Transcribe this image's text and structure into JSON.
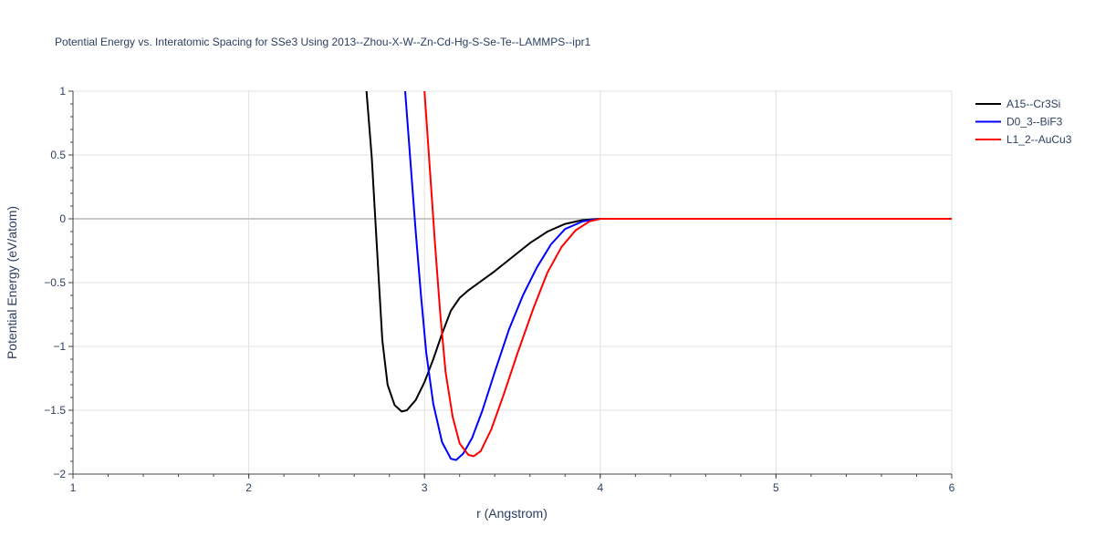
{
  "chart_data": {
    "type": "line",
    "title": "Potential Energy vs. Interatomic Spacing for SSe3 Using 2013--Zhou-X-W--Zn-Cd-Hg-S-Se-Te--LAMMPS--ipr1",
    "xlabel": "r (Angstrom)",
    "ylabel": "Potential Energy (eV/atom)",
    "xlim": [
      1,
      6
    ],
    "ylim": [
      -2,
      1
    ],
    "x_ticks": [
      1,
      2,
      3,
      4,
      5,
      6
    ],
    "x_tick_labels": [
      "1",
      "2",
      "3",
      "4",
      "5",
      "6"
    ],
    "y_ticks": [
      -2,
      -1.5,
      -1,
      -0.5,
      0,
      0.5,
      1
    ],
    "y_tick_labels": [
      "−2",
      "−1.5",
      "−1",
      "−0.5",
      "0",
      "0.5",
      "1"
    ],
    "grid": true,
    "legend_position": "top-right",
    "series": [
      {
        "name": "A15--Cr3Si",
        "color": "#000000",
        "points": [
          [
            2.67,
            1.0
          ],
          [
            2.7,
            0.48
          ],
          [
            2.72,
            0.0
          ],
          [
            2.74,
            -0.48
          ],
          [
            2.76,
            -0.95
          ],
          [
            2.79,
            -1.3
          ],
          [
            2.83,
            -1.46
          ],
          [
            2.87,
            -1.51
          ],
          [
            2.9,
            -1.5
          ],
          [
            2.95,
            -1.42
          ],
          [
            3.0,
            -1.28
          ],
          [
            3.05,
            -1.1
          ],
          [
            3.1,
            -0.9
          ],
          [
            3.15,
            -0.72
          ],
          [
            3.2,
            -0.62
          ],
          [
            3.25,
            -0.56
          ],
          [
            3.3,
            -0.51
          ],
          [
            3.4,
            -0.41
          ],
          [
            3.5,
            -0.3
          ],
          [
            3.6,
            -0.19
          ],
          [
            3.7,
            -0.1
          ],
          [
            3.8,
            -0.04
          ],
          [
            3.9,
            -0.01
          ],
          [
            4.0,
            0.0
          ],
          [
            4.2,
            0.0
          ],
          [
            5.0,
            0.0
          ],
          [
            6.0,
            0.0
          ]
        ]
      },
      {
        "name": "D0_3--BiF3",
        "color": "#0000ff",
        "points": [
          [
            2.89,
            1.0
          ],
          [
            2.92,
            0.45
          ],
          [
            2.95,
            -0.1
          ],
          [
            2.98,
            -0.6
          ],
          [
            3.01,
            -1.05
          ],
          [
            3.05,
            -1.45
          ],
          [
            3.1,
            -1.75
          ],
          [
            3.15,
            -1.88
          ],
          [
            3.18,
            -1.89
          ],
          [
            3.22,
            -1.84
          ],
          [
            3.27,
            -1.72
          ],
          [
            3.33,
            -1.5
          ],
          [
            3.4,
            -1.2
          ],
          [
            3.48,
            -0.87
          ],
          [
            3.56,
            -0.6
          ],
          [
            3.64,
            -0.38
          ],
          [
            3.72,
            -0.2
          ],
          [
            3.8,
            -0.08
          ],
          [
            3.9,
            -0.02
          ],
          [
            4.0,
            0.0
          ],
          [
            4.2,
            0.0
          ],
          [
            5.0,
            0.0
          ],
          [
            6.0,
            0.0
          ]
        ]
      },
      {
        "name": "L1_2--AuCu3",
        "color": "#ff0000",
        "points": [
          [
            3.0,
            1.0
          ],
          [
            3.03,
            0.4
          ],
          [
            3.06,
            -0.2
          ],
          [
            3.09,
            -0.75
          ],
          [
            3.12,
            -1.2
          ],
          [
            3.16,
            -1.55
          ],
          [
            3.2,
            -1.76
          ],
          [
            3.25,
            -1.85
          ],
          [
            3.28,
            -1.86
          ],
          [
            3.32,
            -1.82
          ],
          [
            3.38,
            -1.65
          ],
          [
            3.45,
            -1.38
          ],
          [
            3.53,
            -1.05
          ],
          [
            3.62,
            -0.7
          ],
          [
            3.7,
            -0.42
          ],
          [
            3.78,
            -0.22
          ],
          [
            3.86,
            -0.09
          ],
          [
            3.94,
            -0.02
          ],
          [
            4.0,
            0.0
          ],
          [
            4.2,
            0.0
          ],
          [
            5.0,
            0.0
          ],
          [
            6.0,
            0.0
          ]
        ]
      }
    ]
  }
}
